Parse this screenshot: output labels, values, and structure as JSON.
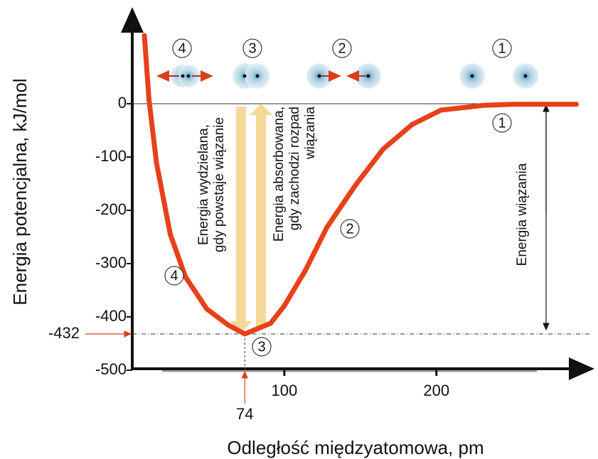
{
  "chart_data": {
    "type": "line",
    "y_axis_label": "Energia potencjalna, kJ/mol",
    "x_axis_label": "Odległość międzyatomowa, pm",
    "x": [
      8,
      11,
      16,
      25,
      35,
      49,
      63,
      74,
      91,
      100,
      114,
      128,
      147,
      165,
      184,
      203,
      231,
      250,
      292
    ],
    "series": [
      {
        "color": "#e8401a",
        "values": [
          128,
          8,
          -112,
          -245,
          -325,
          -385,
          -415,
          -432,
          -412,
          -379,
          -312,
          -232,
          -152,
          -85,
          -39,
          -12,
          -3,
          -1,
          -1
        ]
      }
    ],
    "xlim": [
      0,
      303
    ],
    "ylim": [
      -500,
      170
    ],
    "xticks": [
      100,
      200
    ],
    "yticks": [
      0,
      -100,
      -200,
      -300,
      -400,
      -500
    ],
    "minimum": {
      "x": 74,
      "y": -432
    },
    "released_label": [
      "Energia wydzielana,",
      "gdy powstaje wiązanie"
    ],
    "absorbed_label": [
      "Energia absorbowana,",
      "gdy zachodzi rozpad",
      "wiązania"
    ],
    "bond_energy_label": "Energia wiązania",
    "molecule_labels": [
      "4",
      "3",
      "2",
      "1"
    ],
    "curve_labels": [
      "1",
      "2",
      "3",
      "4"
    ]
  }
}
